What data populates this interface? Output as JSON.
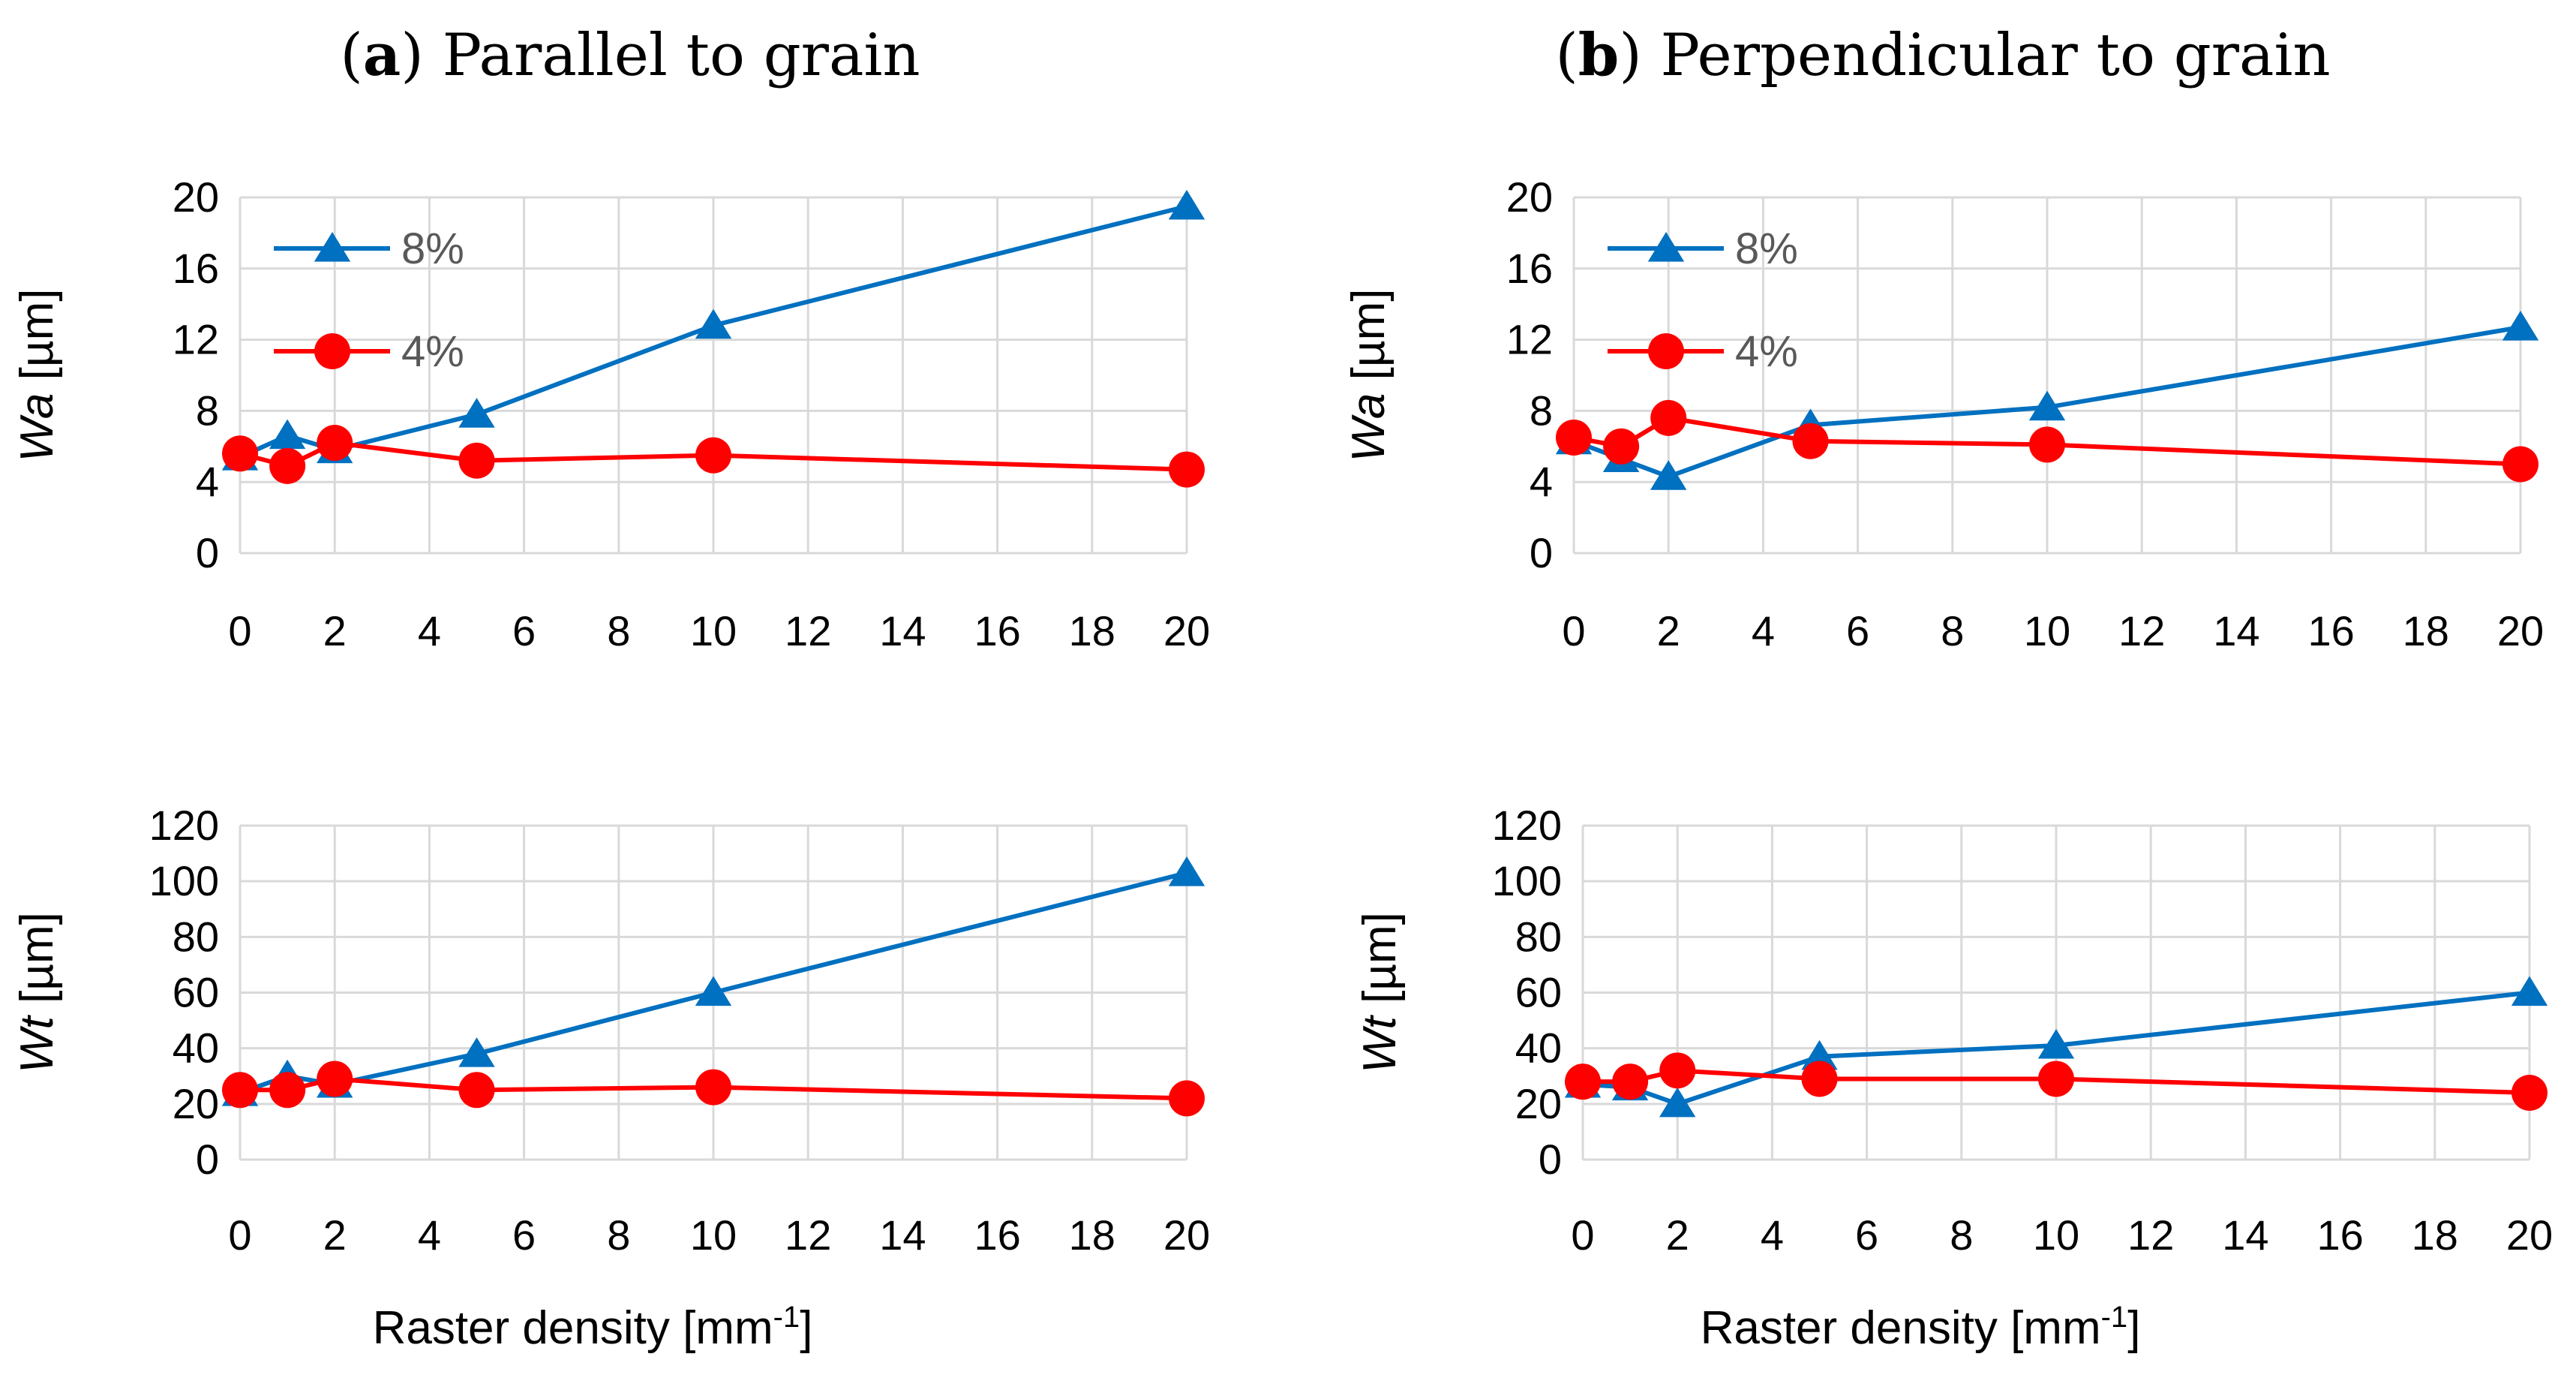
{
  "titles": {
    "a_prefix": "(",
    "a_letter": "a",
    "a_text": ") Parallel to grain",
    "b_prefix": "(",
    "b_letter": "b",
    "b_text": ") Perpendicular to grain"
  },
  "x_axis_label": {
    "a": {
      "text": "Raster density [mm",
      "sup": "-1",
      "close": "]"
    },
    "b": {
      "text": "Raster density [mm",
      "sup": "-1",
      "close": "]"
    }
  },
  "colors": {
    "s8": "#0070c0",
    "s4": "#ff0000",
    "grid": "#d9d9d9"
  },
  "chart_data": [
    {
      "id": "a-wa",
      "type": "line",
      "panel": "(a) Parallel to grain",
      "ylabel_italic": "Wa",
      "ylabel_unit": " [µm]",
      "x": [
        0,
        1,
        2,
        5,
        10,
        20
      ],
      "xlim": [
        0,
        20
      ],
      "xticks": [
        0,
        2,
        4,
        6,
        8,
        10,
        12,
        14,
        16,
        18,
        20
      ],
      "ylim": [
        0,
        20
      ],
      "yticks": [
        0,
        4,
        8,
        12,
        16,
        20
      ],
      "grid": true,
      "legend": "top-left",
      "series": [
        {
          "name": "8%",
          "marker": "triangle",
          "values": [
            5.4,
            6.6,
            5.8,
            7.8,
            12.8,
            19.5
          ]
        },
        {
          "name": "4%",
          "marker": "circle",
          "values": [
            5.6,
            4.9,
            6.2,
            5.2,
            5.5,
            4.7
          ]
        }
      ]
    },
    {
      "id": "b-wa",
      "type": "line",
      "panel": "(b) Perpendicular to grain",
      "ylabel_italic": "Wa",
      "ylabel_unit": " [µm]",
      "x": [
        0,
        1,
        2,
        5,
        10,
        20
      ],
      "xlim": [
        0,
        20
      ],
      "xticks": [
        0,
        2,
        4,
        6,
        8,
        10,
        12,
        14,
        16,
        18,
        20
      ],
      "ylim": [
        0,
        20
      ],
      "yticks": [
        0,
        4,
        8,
        12,
        16,
        20
      ],
      "grid": true,
      "legend": "top-left",
      "series": [
        {
          "name": "8%",
          "marker": "triangle",
          "values": [
            6.3,
            5.3,
            4.3,
            7.2,
            8.2,
            12.7
          ]
        },
        {
          "name": "4%",
          "marker": "circle",
          "values": [
            6.5,
            6.0,
            7.6,
            6.3,
            6.1,
            5.0
          ]
        }
      ]
    },
    {
      "id": "a-wt",
      "type": "line",
      "panel": "(a) Parallel to grain",
      "ylabel_italic": "Wt",
      "ylabel_unit": " [µm]",
      "x": [
        0,
        1,
        2,
        5,
        10,
        20
      ],
      "xlim": [
        0,
        20
      ],
      "xticks": [
        0,
        2,
        4,
        6,
        8,
        10,
        12,
        14,
        16,
        18,
        20
      ],
      "ylim": [
        0,
        120
      ],
      "yticks": [
        0,
        20,
        40,
        60,
        80,
        100,
        120
      ],
      "grid": true,
      "series": [
        {
          "name": "8%",
          "marker": "triangle",
          "values": [
            24,
            30,
            27,
            38,
            60,
            103
          ]
        },
        {
          "name": "4%",
          "marker": "circle",
          "values": [
            25,
            25,
            29,
            25,
            26,
            22
          ]
        }
      ]
    },
    {
      "id": "b-wt",
      "type": "line",
      "panel": "(b) Perpendicular to grain",
      "ylabel_italic": "Wt",
      "ylabel_unit": " [µm]",
      "x": [
        0,
        1,
        2,
        5,
        10,
        20
      ],
      "xlim": [
        0,
        20
      ],
      "xticks": [
        0,
        2,
        4,
        6,
        8,
        10,
        12,
        14,
        16,
        18,
        20
      ],
      "ylim": [
        0,
        120
      ],
      "yticks": [
        0,
        20,
        40,
        60,
        80,
        100,
        120
      ],
      "grid": true,
      "series": [
        {
          "name": "8%",
          "marker": "triangle",
          "values": [
            27,
            26,
            20,
            37,
            41,
            60
          ]
        },
        {
          "name": "4%",
          "marker": "circle",
          "values": [
            28,
            28,
            32,
            29,
            29,
            24
          ]
        }
      ]
    }
  ]
}
